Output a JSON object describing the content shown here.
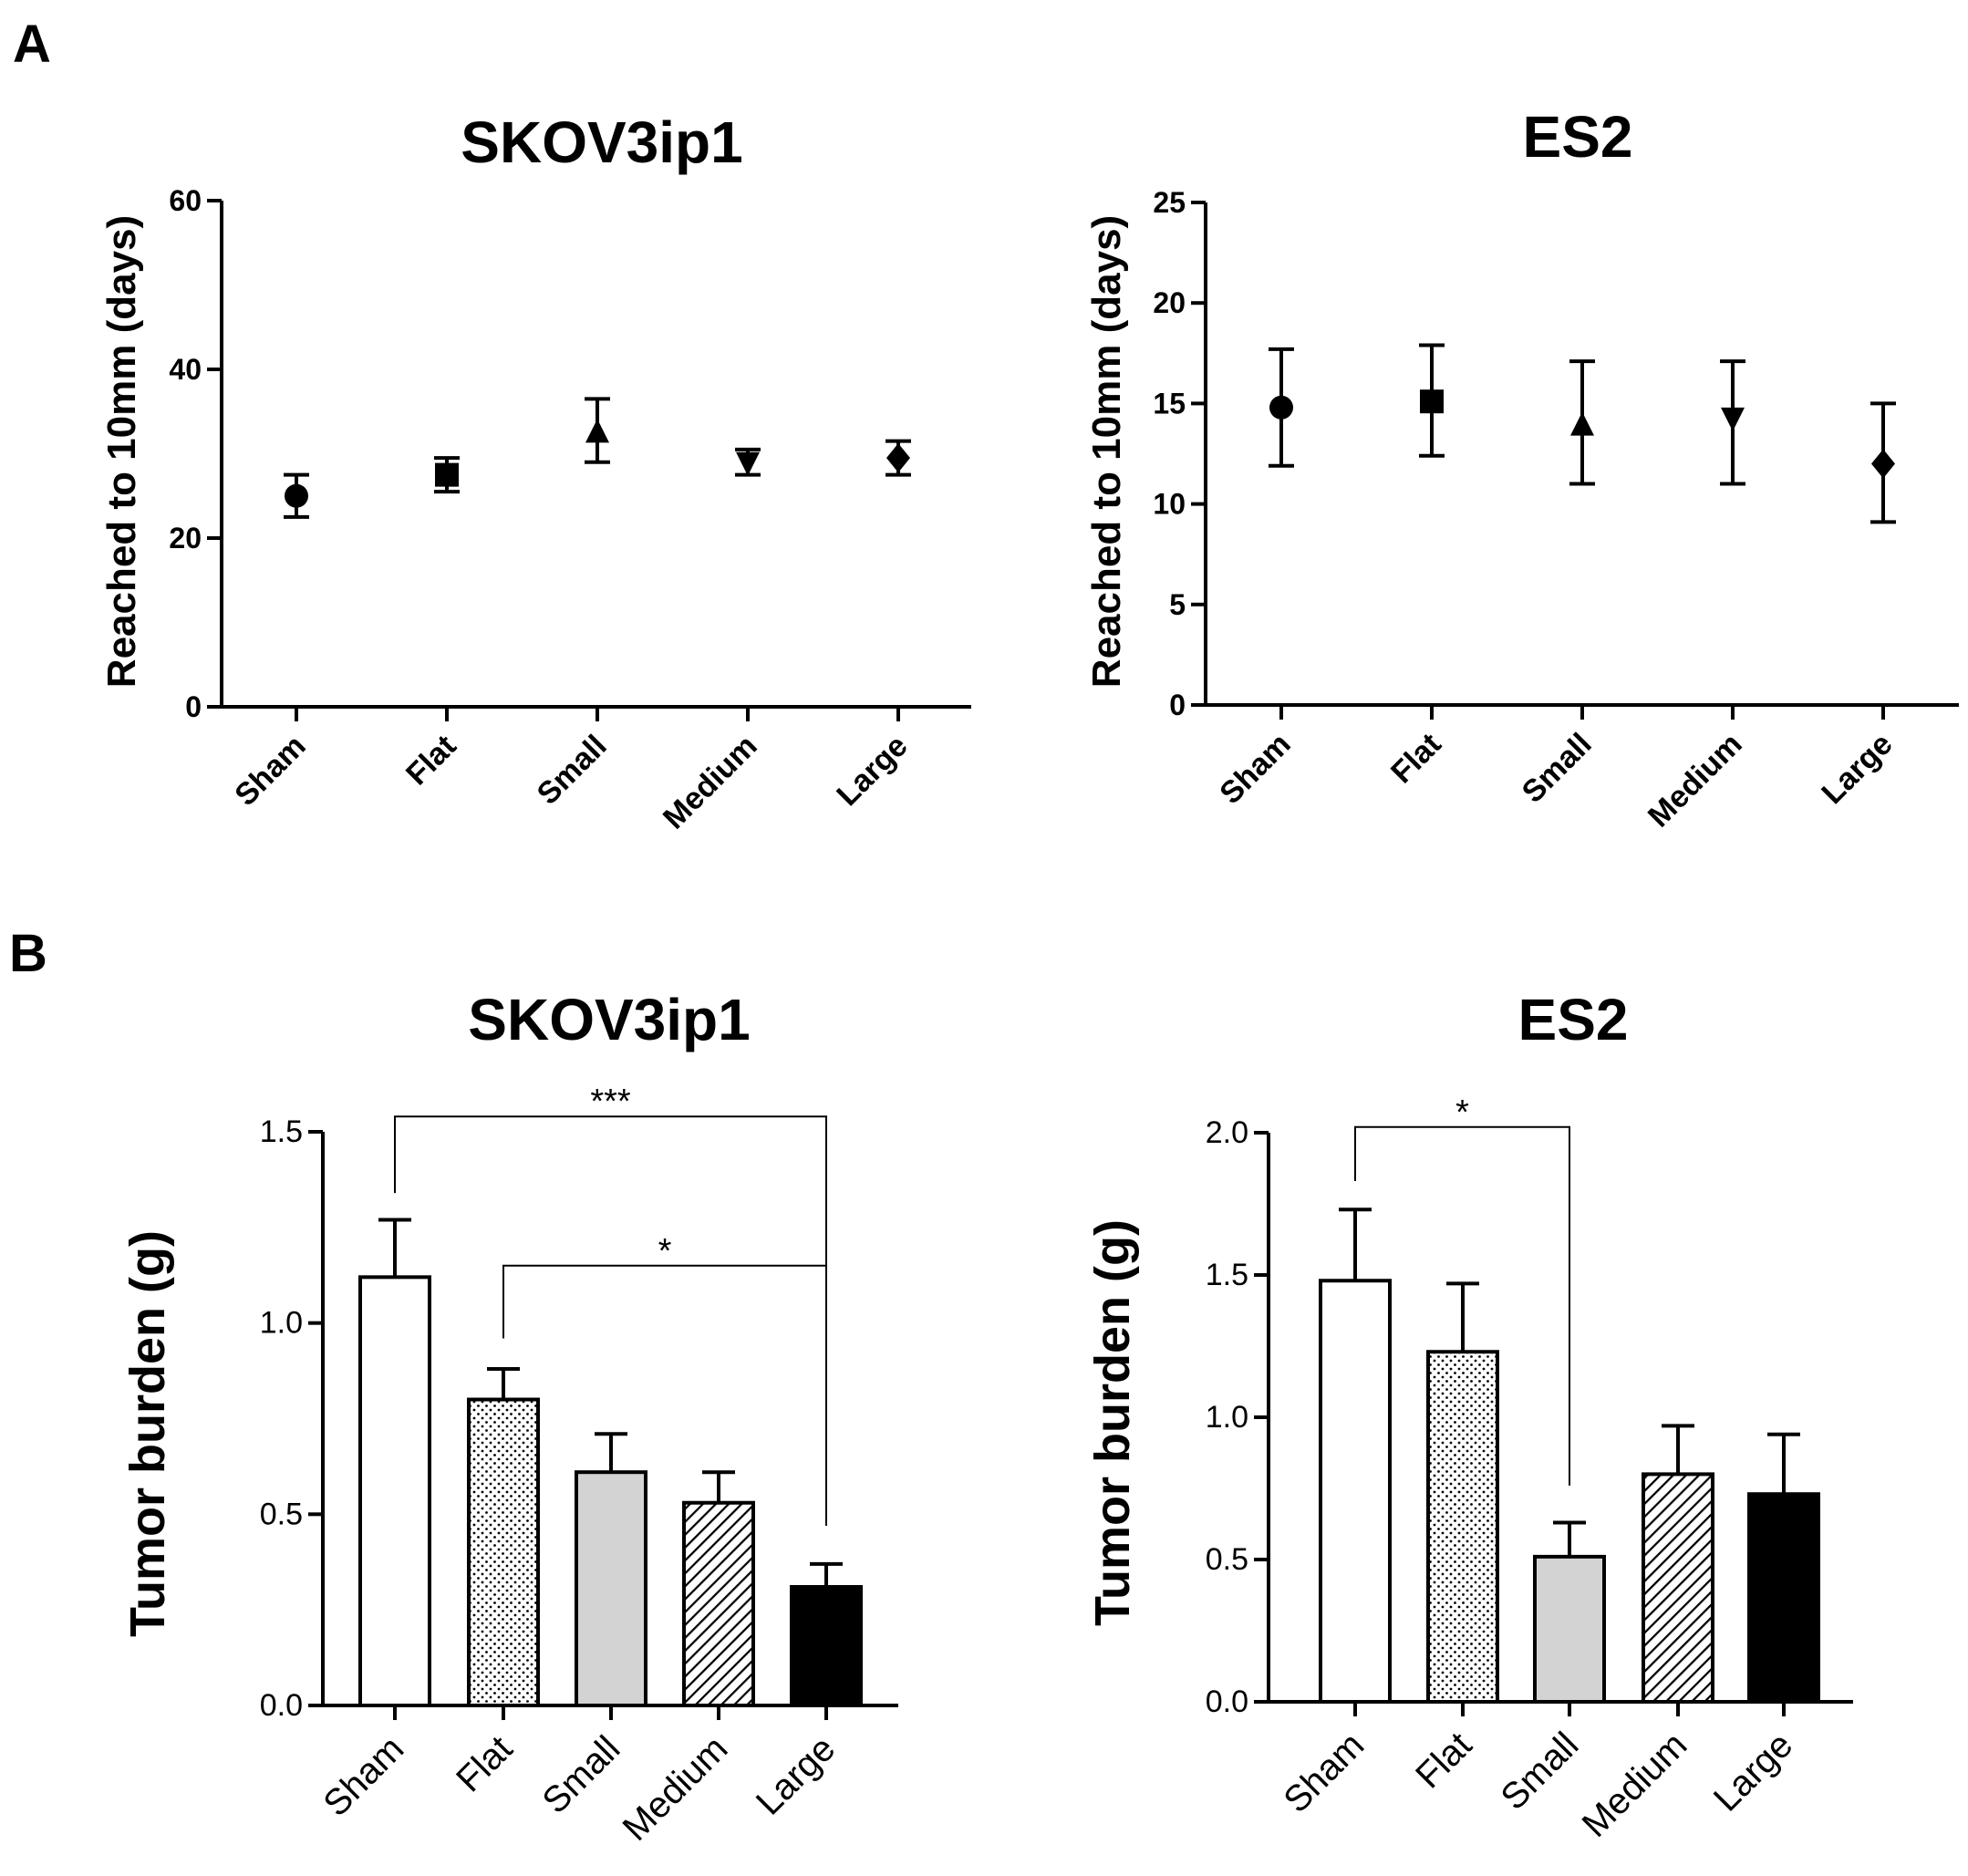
{
  "panel_labels": [
    "A",
    "B"
  ],
  "chart_data": [
    {
      "id": "a1",
      "panel": "A",
      "type": "scatter",
      "title": "SKOV3ip1",
      "xlabel": "",
      "ylabel": "Reached to 10mm (days)",
      "categories": [
        "Sham",
        "Flat",
        "Small",
        "Medium",
        "Large"
      ],
      "markers": [
        "circle",
        "square",
        "triangle-up",
        "triangle-down",
        "diamond"
      ],
      "values": [
        25,
        27.5,
        32.5,
        29,
        29.5
      ],
      "err_low": [
        22.5,
        25.5,
        29,
        27.5,
        27.5
      ],
      "err_high": [
        27.5,
        29.5,
        36.5,
        30.5,
        31.5
      ],
      "ylim": [
        0,
        60
      ],
      "yticks": [
        0,
        20,
        40,
        60
      ],
      "legend": "none"
    },
    {
      "id": "a2",
      "panel": "A",
      "type": "scatter",
      "title": "ES2",
      "xlabel": "",
      "ylabel": "Reached to 10mm (days)",
      "categories": [
        "Sham",
        "Flat",
        "Small",
        "Medium",
        "Large"
      ],
      "markers": [
        "circle",
        "square",
        "triangle-up",
        "triangle-down",
        "diamond"
      ],
      "values": [
        14.8,
        15.1,
        13.9,
        14.3,
        12.0
      ],
      "err_low": [
        11.9,
        12.4,
        11.0,
        11.0,
        9.1
      ],
      "err_high": [
        17.7,
        17.9,
        17.1,
        17.1,
        15.0
      ],
      "ylim": [
        0,
        25
      ],
      "yticks": [
        0,
        5,
        10,
        15,
        20,
        25
      ],
      "legend": "none"
    },
    {
      "id": "b1",
      "panel": "B",
      "type": "bar",
      "title": "SKOV3ip1",
      "xlabel": "",
      "ylabel": "Tumor burden (g)",
      "categories": [
        "Sham",
        "Flat",
        "Small",
        "Medium",
        "Large"
      ],
      "fills": [
        "white",
        "dots",
        "lightgray",
        "hatch",
        "black"
      ],
      "values": [
        1.12,
        0.8,
        0.61,
        0.53,
        0.31
      ],
      "err_high": [
        1.27,
        0.88,
        0.71,
        0.61,
        0.37
      ],
      "ylim": [
        0,
        1.5
      ],
      "yticks": [
        "0.0",
        "0.5",
        "1.0",
        "1.5"
      ],
      "significance": [
        {
          "from": 0,
          "to": 4,
          "label": "***",
          "level": 1.54,
          "drop_from": 1.34,
          "drop_to": 0.47
        },
        {
          "from": 1,
          "to": 4,
          "label": "*",
          "level": 1.15,
          "drop_from": 0.96,
          "drop_to": 0.47
        }
      ],
      "legend": "none"
    },
    {
      "id": "b2",
      "panel": "B",
      "type": "bar",
      "title": "ES2",
      "xlabel": "",
      "ylabel": "Tumor burden (g)",
      "categories": [
        "Sham",
        "Flat",
        "Small",
        "Medium",
        "Large"
      ],
      "fills": [
        "white",
        "dots",
        "lightgray",
        "hatch",
        "black"
      ],
      "values": [
        1.48,
        1.23,
        0.51,
        0.8,
        0.73
      ],
      "err_high": [
        1.73,
        1.47,
        0.63,
        0.97,
        0.94
      ],
      "ylim": [
        0,
        2.0
      ],
      "yticks": [
        "0.0",
        "0.5",
        "1.0",
        "1.5",
        "2.0"
      ],
      "significance": [
        {
          "from": 0,
          "to": 2,
          "label": "*",
          "level": 2.02,
          "drop_from": 1.83,
          "drop_to": 0.76
        }
      ],
      "legend": "none"
    }
  ]
}
